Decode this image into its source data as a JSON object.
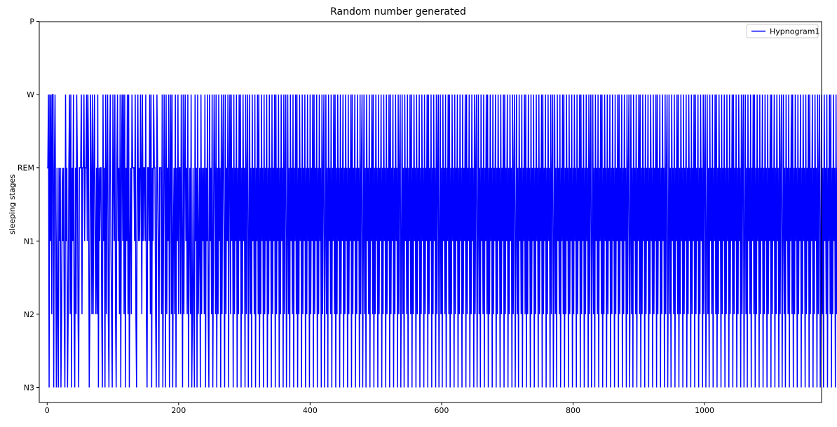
{
  "chart_data": {
    "type": "line",
    "title": "Random number generated",
    "xlabel": "",
    "ylabel": "sleeping stages",
    "xlim": [
      -12,
      1178
    ],
    "xticks": [
      0,
      200,
      400,
      600,
      800,
      1000
    ],
    "y_categories": [
      "N3",
      "N2",
      "N1",
      "REM",
      "W",
      "P"
    ],
    "ylim": [
      0,
      5
    ],
    "grid": false,
    "legend_position": "top-right",
    "series": [
      {
        "name": "Hypnogram1",
        "color": "#0000ff",
        "x_start": 0,
        "x_step": 1,
        "values": [
          3,
          3,
          4,
          0,
          4,
          2,
          4,
          1,
          4,
          4,
          0,
          3,
          4,
          2,
          0,
          3,
          1,
          0,
          3,
          2,
          3,
          0,
          1,
          3,
          2,
          3,
          1,
          0,
          4,
          2,
          3,
          0,
          1,
          3,
          4,
          1,
          4,
          0,
          3,
          2,
          4,
          1,
          0,
          3,
          1,
          4,
          3,
          1,
          0,
          3,
          3,
          3,
          4,
          1,
          3,
          3,
          4,
          2,
          3,
          3,
          4,
          2,
          4,
          3,
          0,
          1,
          4,
          3,
          1,
          4,
          1,
          3,
          4,
          2,
          1,
          3,
          1,
          4,
          0,
          3,
          2,
          3,
          3,
          1,
          0,
          4,
          2,
          3,
          0,
          4,
          1,
          3,
          4,
          1,
          0,
          3,
          4,
          2,
          1,
          0,
          4,
          3,
          2,
          4,
          1,
          0,
          3,
          4,
          2,
          3,
          1,
          4,
          0,
          3,
          4,
          2,
          4,
          1,
          4,
          0,
          3,
          2,
          4,
          1,
          4,
          0,
          2,
          3,
          1,
          4,
          3,
          3,
          3,
          2,
          4,
          1,
          0,
          3,
          4,
          2,
          3,
          2,
          4,
          3,
          1,
          4,
          2,
          3,
          3,
          2,
          4,
          1,
          0,
          3,
          3,
          2,
          4,
          1,
          4,
          0,
          3,
          2,
          4,
          3,
          3,
          1,
          0,
          4,
          3,
          2,
          0,
          3,
          3,
          3,
          1,
          4,
          0,
          2,
          4,
          3,
          0,
          4,
          1,
          3,
          2,
          4,
          0,
          3,
          4,
          1,
          4,
          0,
          2,
          3,
          1,
          4,
          0,
          3,
          2,
          4,
          1,
          3,
          3,
          1,
          4,
          2,
          0,
          4,
          1,
          3,
          4,
          2,
          3,
          1,
          4,
          0,
          2,
          3,
          1,
          4,
          0,
          1,
          3,
          1,
          0,
          4,
          2,
          3,
          0,
          4,
          1,
          2,
          3,
          0,
          4,
          1,
          3,
          2,
          3,
          1,
          4,
          0,
          3,
          2,
          4,
          1,
          0,
          4,
          2,
          3,
          1,
          4,
          0,
          2,
          4,
          3,
          1,
          4,
          0,
          3,
          1,
          4,
          2,
          3,
          0,
          4,
          1,
          3,
          4,
          2,
          0,
          4,
          1,
          3,
          2,
          4,
          0,
          3,
          4,
          1,
          4,
          2,
          3,
          0,
          4,
          1,
          3,
          2,
          4,
          0,
          3,
          1,
          4,
          2,
          4,
          0,
          3,
          1,
          4,
          2,
          3,
          0,
          4,
          1,
          3,
          4,
          0,
          2,
          4,
          1,
          3,
          0,
          4,
          2,
          3,
          1,
          4,
          0,
          3,
          2,
          4,
          1,
          4,
          0,
          3,
          1,
          4,
          2,
          3,
          0,
          4,
          1,
          3,
          2,
          4,
          0,
          3,
          1,
          4,
          2,
          3,
          0,
          4,
          1,
          3,
          2,
          4,
          0,
          4,
          1,
          3,
          2,
          4,
          0,
          3,
          1,
          4,
          2,
          3,
          0,
          4,
          1,
          3,
          4,
          0,
          2,
          4,
          1,
          3,
          0,
          4,
          2,
          3,
          1,
          4,
          0,
          3,
          2,
          4,
          1,
          4,
          0,
          3,
          1,
          4,
          2,
          3,
          0,
          4,
          1,
          3,
          2,
          4,
          0,
          3,
          1,
          4,
          2,
          3,
          0,
          4,
          1,
          3,
          2,
          4,
          0,
          4,
          1,
          3,
          2,
          4,
          0,
          3,
          1,
          4,
          2,
          3,
          0,
          4,
          1,
          3,
          4,
          0,
          2,
          4,
          1,
          3,
          0,
          4,
          2,
          3,
          1,
          4,
          0,
          3,
          2,
          4,
          1,
          4,
          0,
          3,
          1,
          4,
          2,
          3,
          0,
          4,
          1,
          3,
          2,
          4,
          0,
          3,
          1,
          4,
          2,
          3,
          0,
          4,
          1,
          3,
          2,
          4,
          0,
          4,
          1,
          3,
          2,
          4,
          0,
          3,
          1,
          4,
          2,
          3,
          0,
          4,
          1,
          3,
          4,
          0,
          2,
          4,
          1,
          3,
          0,
          4,
          2,
          3,
          1,
          4,
          0,
          3,
          2,
          4,
          1,
          4,
          0,
          3,
          1,
          4,
          2,
          3,
          0,
          4,
          1,
          3,
          2,
          4,
          0,
          3,
          1,
          4,
          2,
          3,
          0,
          4,
          1,
          3,
          2,
          4,
          0,
          4,
          1,
          3,
          2,
          4,
          0,
          3,
          1,
          4,
          2,
          3,
          0,
          4,
          1,
          3,
          4,
          0,
          2,
          4,
          1,
          3,
          0,
          4,
          2,
          3,
          1,
          4,
          0,
          3,
          2,
          4,
          1,
          4,
          0,
          3,
          1,
          4,
          2,
          3,
          0,
          4,
          1,
          3,
          2,
          4,
          0,
          3,
          1,
          4,
          2,
          3,
          0,
          4,
          1,
          3,
          2,
          4,
          0,
          4,
          1,
          3,
          2,
          4,
          0,
          3,
          1,
          4,
          2,
          3,
          0,
          4,
          1,
          3,
          4,
          0,
          2,
          4,
          1,
          3,
          0,
          4,
          2,
          3,
          1,
          4,
          0,
          3,
          2,
          4,
          1,
          4,
          0,
          3,
          1,
          4,
          2,
          3,
          0,
          4,
          1,
          3,
          2,
          4,
          0,
          3,
          1,
          4,
          2,
          3,
          0,
          4,
          1,
          3,
          2,
          4,
          0,
          4,
          1,
          3,
          2,
          4,
          0,
          3,
          1,
          4,
          2,
          3,
          0,
          4,
          1,
          3,
          4,
          0,
          2,
          4,
          1,
          3,
          0,
          4,
          2,
          3,
          1,
          4,
          0,
          3,
          2,
          4,
          1,
          4,
          0,
          3,
          1,
          4,
          2,
          3,
          0,
          4,
          1,
          3,
          2,
          4,
          0,
          3,
          1,
          4,
          2,
          3,
          0,
          4,
          1,
          3,
          2,
          4,
          0,
          4,
          1,
          3,
          2,
          4,
          0,
          3,
          1,
          4,
          2,
          3,
          0,
          4,
          1,
          3,
          4,
          0,
          2,
          4,
          1,
          3,
          0,
          4,
          2,
          3,
          1,
          4,
          0,
          3,
          2,
          4,
          1,
          4,
          0,
          3,
          1,
          4,
          2,
          3,
          0,
          4,
          1,
          3,
          2,
          4,
          0,
          3,
          1,
          4,
          2,
          3,
          0,
          4,
          1,
          3,
          2,
          4,
          0,
          4,
          1,
          3,
          2,
          4,
          0,
          3,
          1,
          4,
          2,
          3,
          0,
          4,
          1,
          3,
          4,
          0,
          2,
          4,
          1,
          3,
          0,
          4,
          2,
          3,
          1,
          4,
          0,
          3,
          2,
          4,
          1,
          4,
          0,
          3,
          1,
          4,
          2,
          3,
          0,
          4,
          1,
          3,
          2,
          4,
          0,
          3,
          1,
          4,
          2,
          3,
          0,
          4,
          1,
          3,
          2,
          4,
          0,
          4,
          1,
          3,
          2,
          4,
          0,
          3,
          1,
          4,
          2,
          3,
          0,
          4,
          1,
          3,
          4,
          0,
          2,
          4,
          1,
          3,
          0,
          4,
          2,
          3,
          1,
          4,
          0,
          3,
          2,
          4,
          1,
          4,
          0,
          3,
          1,
          4,
          2,
          3,
          0,
          4,
          1,
          3,
          2,
          4,
          0,
          3,
          1,
          4,
          2,
          3,
          0,
          4,
          1,
          3,
          2,
          4,
          0,
          4,
          1,
          3,
          2,
          4,
          0,
          3,
          1,
          4,
          2,
          3,
          0,
          4,
          1,
          3,
          4,
          0,
          2,
          4,
          1,
          3,
          0,
          4,
          2,
          3,
          1,
          4,
          0,
          3,
          2,
          4,
          1,
          4,
          0,
          3,
          1,
          4,
          2,
          3,
          0,
          4,
          1,
          3,
          2,
          4,
          0,
          3,
          1,
          4,
          2,
          3,
          0,
          4,
          1,
          3,
          2,
          4,
          0,
          4,
          1,
          3,
          2,
          4,
          0,
          3,
          1,
          4,
          2,
          3,
          0,
          4,
          1,
          3,
          4,
          0,
          2,
          4,
          1,
          3,
          0,
          4,
          2,
          3,
          1,
          4,
          0,
          3,
          2,
          4,
          1,
          4,
          0,
          3,
          1,
          4,
          2,
          3,
          0,
          4,
          1,
          3,
          2,
          4,
          0,
          3,
          1,
          4,
          2,
          3,
          0,
          4,
          1,
          3,
          2,
          4,
          0,
          4,
          1,
          3,
          2,
          4,
          0,
          3,
          1,
          4,
          2,
          3,
          0,
          4,
          1,
          3,
          4,
          0,
          2,
          4,
          1,
          3,
          0,
          4,
          2,
          3,
          1,
          4,
          0,
          3,
          2,
          4,
          1,
          4,
          0,
          3,
          1,
          4,
          2,
          3,
          0,
          4,
          1,
          3,
          2,
          4,
          0,
          3,
          1,
          4,
          2,
          3,
          0,
          4,
          1,
          3,
          2,
          4,
          0,
          4,
          1,
          3,
          2,
          4,
          0,
          3,
          1,
          4,
          2,
          3,
          0,
          4,
          1,
          3,
          4,
          0,
          2,
          4,
          1,
          3,
          0,
          4,
          2,
          3,
          1,
          4,
          0,
          3,
          2,
          4,
          1,
          4,
          0,
          3,
          1,
          4,
          2,
          3,
          0,
          4,
          1,
          3,
          2,
          4,
          0,
          3,
          1,
          4,
          2,
          3,
          0,
          4,
          1,
          3,
          2,
          4,
          0,
          4,
          1,
          3,
          2,
          4,
          0,
          3,
          1,
          4,
          2,
          3,
          0,
          4,
          1,
          3,
          4,
          0,
          2,
          4,
          1,
          3,
          0,
          4,
          2,
          3,
          1,
          4,
          0,
          3,
          2,
          4,
          1,
          4,
          0,
          3,
          1,
          4,
          2,
          3,
          0,
          4,
          1,
          3,
          2,
          4,
          0,
          3,
          1,
          4,
          2,
          3,
          0,
          4,
          1,
          3,
          2,
          4,
          0,
          4,
          1,
          3,
          2,
          4,
          0,
          3,
          1,
          4,
          2,
          3,
          0,
          4,
          1,
          3,
          4,
          0,
          2,
          4,
          1,
          3,
          0,
          4,
          2,
          3,
          1,
          4,
          0,
          3,
          2,
          4,
          1,
          4,
          0,
          3,
          1,
          4,
          2,
          3,
          0,
          4,
          1,
          3,
          2,
          4,
          0,
          3,
          1,
          4,
          2,
          3,
          0,
          4,
          1,
          3,
          2,
          4,
          0,
          4,
          1,
          3,
          2,
          4,
          0,
          3,
          1,
          4,
          2,
          3,
          0,
          4,
          1,
          3,
          4,
          0,
          2,
          4,
          1,
          3,
          0,
          4,
          2,
          3,
          1,
          4,
          0,
          3,
          2,
          4,
          1,
          4,
          0,
          3,
          1,
          4,
          2,
          3,
          0,
          4,
          1,
          3,
          2,
          4,
          0,
          3,
          1,
          4,
          2,
          3,
          0,
          4,
          1,
          3,
          2,
          4,
          0,
          4,
          1,
          3,
          2,
          4,
          0,
          3,
          1,
          4,
          2,
          3,
          0,
          4,
          1,
          3,
          4,
          0,
          2,
          4,
          1,
          3,
          0,
          4,
          2,
          3,
          1,
          4,
          0,
          3,
          2,
          4,
          1,
          4,
          0,
          3,
          1,
          4,
          2,
          3,
          0,
          4,
          1,
          3,
          2,
          4,
          0,
          3,
          1,
          4,
          2,
          3,
          0,
          4,
          1,
          3,
          2,
          4,
          0,
          4,
          1,
          3,
          2,
          4,
          0,
          3,
          1,
          4,
          2,
          3,
          0,
          4,
          1,
          3,
          2,
          3,
          1,
          2,
          3,
          2,
          4,
          2,
          3,
          3,
          3,
          2,
          2,
          3,
          2,
          2,
          4,
          1,
          3
        ]
      }
    ]
  }
}
